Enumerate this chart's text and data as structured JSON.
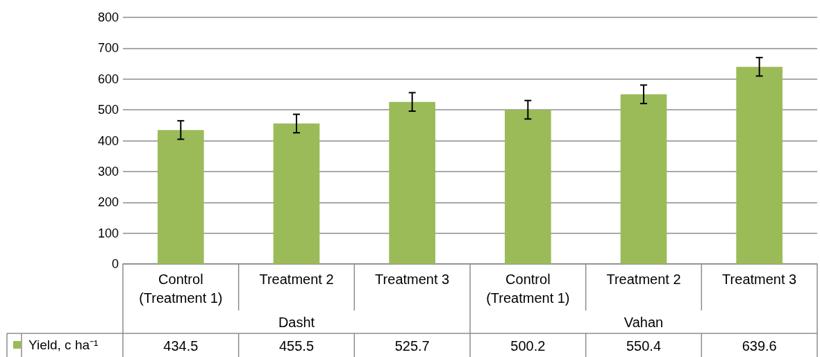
{
  "chart_data": {
    "type": "bar",
    "categories": [
      "Control\n(Treatment 1)",
      "Treatment 2",
      "Treatment 3",
      "Control\n(Treatment 1)",
      "Treatment 2",
      "Treatment 3"
    ],
    "annotations": [
      "Dasht",
      "Vahan"
    ],
    "series": [
      {
        "name": "Yield, c ha⁻¹",
        "color": "#9bbb59",
        "values": [
          434.5,
          455.5,
          525.7,
          500.2,
          550.4,
          639.6
        ],
        "errors": [
          30,
          30,
          30,
          30,
          30,
          30
        ]
      }
    ],
    "ylim": [
      0,
      800
    ],
    "yticks": [
      0,
      100,
      200,
      300,
      400,
      500,
      600,
      700,
      800
    ],
    "grid": "y",
    "legend": "bottom left",
    "data_labels": true
  }
}
